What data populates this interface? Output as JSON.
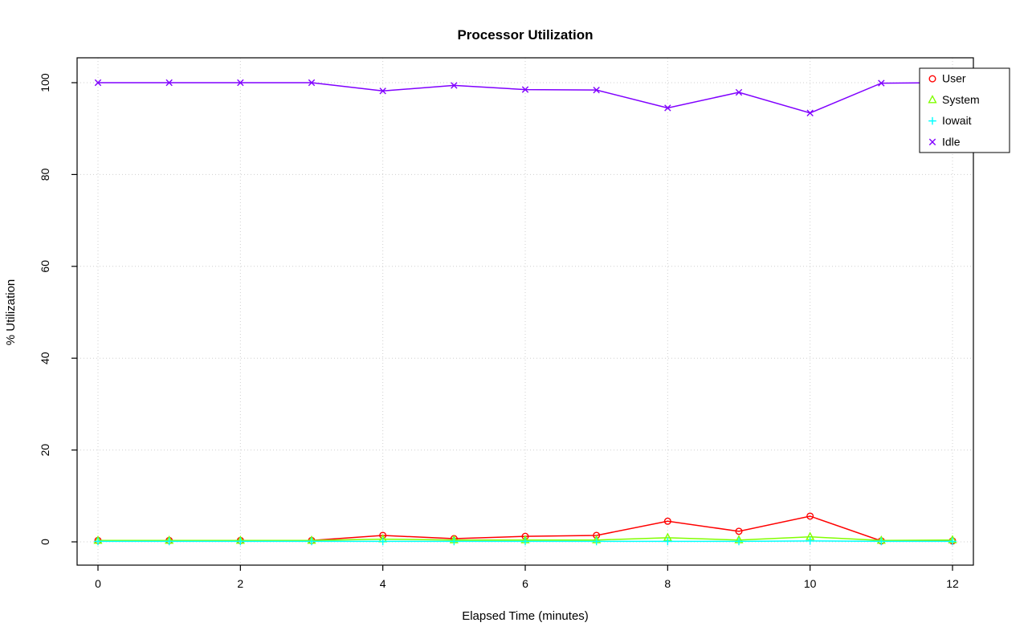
{
  "chart_data": {
    "type": "line",
    "title": "Processor Utilization",
    "xlabel": "Elapsed Time (minutes)",
    "ylabel": "% Utilization",
    "xlim": [
      0,
      12
    ],
    "ylim": [
      0,
      100
    ],
    "xticks": [
      0,
      2,
      4,
      6,
      8,
      10,
      12
    ],
    "yticks": [
      0,
      20,
      40,
      60,
      80,
      100
    ],
    "grid": true,
    "grid_style": "dotted",
    "legend_position": "top-right",
    "x": [
      0,
      1,
      2,
      3,
      4,
      5,
      6,
      7,
      8,
      9,
      10,
      11,
      12
    ],
    "series": [
      {
        "name": "User",
        "color": "#FF0000",
        "marker": "circle",
        "values": [
          0.3,
          0.3,
          0.3,
          0.3,
          1.4,
          0.7,
          1.2,
          1.4,
          4.5,
          2.3,
          5.6,
          0.2,
          0.2
        ]
      },
      {
        "name": "System",
        "color": "#80FF00",
        "marker": "triangle",
        "values": [
          0.3,
          0.3,
          0.3,
          0.3,
          0.6,
          0.4,
          0.4,
          0.4,
          0.9,
          0.4,
          1.1,
          0.3,
          0.4
        ]
      },
      {
        "name": "Iowait",
        "color": "#00FFFF",
        "marker": "plus",
        "values": [
          0.1,
          0.1,
          0.1,
          0.1,
          0.1,
          0.1,
          0.1,
          0.1,
          0.1,
          0.1,
          0.2,
          0.1,
          0.1
        ]
      },
      {
        "name": "Idle",
        "color": "#8000FF",
        "marker": "x",
        "values": [
          100,
          100,
          100,
          100,
          98.2,
          99.4,
          98.5,
          98.4,
          94.5,
          97.9,
          93.4,
          99.9,
          100
        ]
      }
    ]
  }
}
